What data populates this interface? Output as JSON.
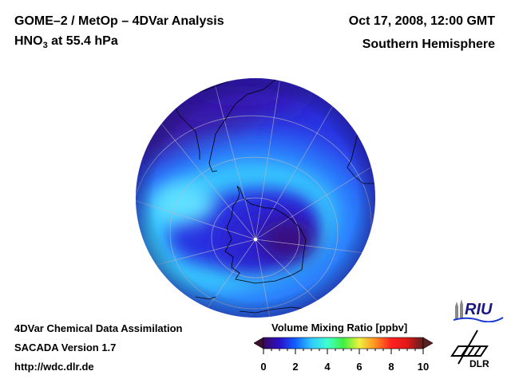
{
  "header": {
    "title_line1": "GOME–2 / MetOp – 4DVar Analysis",
    "title_line2_prefix": "HNO",
    "title_line2_sub": "3",
    "title_line2_suffix": " at 55.4 hPa",
    "date": "Oct 17, 2008, 12:00 GMT",
    "region": "Southern Hemisphere"
  },
  "footer": {
    "line1": "4DVar Chemical Data Assimilation",
    "line2": "SACADA Version 1.7",
    "line3": "http://wdc.dlr.de"
  },
  "colorbar": {
    "title": "Volume Mixing Ratio [ppbv]",
    "min": 0,
    "max": 10,
    "ticks": [
      "0",
      "2",
      "4",
      "6",
      "8",
      "10"
    ],
    "colors": [
      "#3a0a5e",
      "#2a10c8",
      "#1060ff",
      "#30c8ff",
      "#40ffd0",
      "#40f040",
      "#f0f040",
      "#ff9020",
      "#ff2020",
      "#e01818",
      "#5a2020"
    ]
  },
  "logos": {
    "riu": "RIU",
    "dlr": "DLR"
  },
  "map": {
    "projection": "orthographic",
    "center": "South Pole",
    "field": "HNO3",
    "colors": {
      "background_low": "#3a14c0",
      "band_high": "#38d8ff",
      "vortex_core": "#3a0a70",
      "grid": "#b8b8c8",
      "coast": "#000000"
    }
  }
}
